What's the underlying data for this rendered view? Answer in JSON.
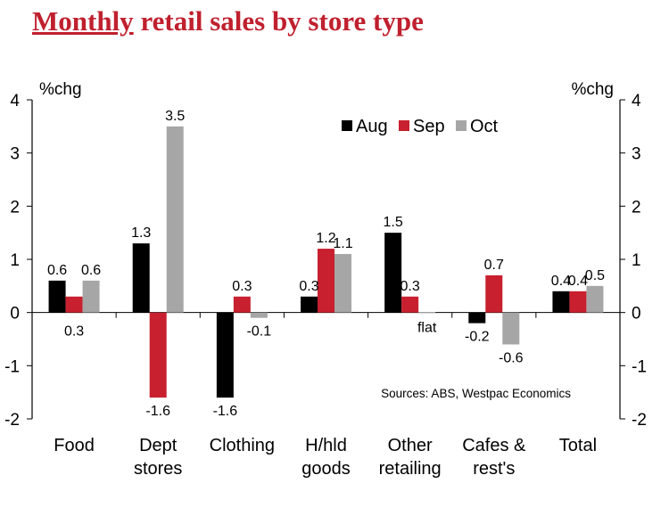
{
  "title": {
    "underlined": "Monthly",
    "rest": " retail sales by store type"
  },
  "colors": {
    "aug": "#000000",
    "sep": "#c8202f",
    "oct": "#a6a6a6",
    "title": "#c0202e"
  },
  "chart_data": {
    "type": "bar",
    "title": "Monthly retail sales by store type",
    "unit_label_left": "%chg",
    "unit_label_right": "%chg",
    "ylim": [
      -2,
      4
    ],
    "yticks": [
      "-2",
      "-1",
      "0",
      "1",
      "2",
      "3",
      "4"
    ],
    "categories": [
      [
        "Food"
      ],
      [
        "Dept",
        "stores"
      ],
      [
        "Clothing"
      ],
      [
        "H/hld",
        "goods"
      ],
      [
        "Other",
        "retailing"
      ],
      [
        "Cafes &",
        "rest's"
      ],
      [
        "Total"
      ]
    ],
    "series": [
      {
        "name": "Aug",
        "color": "#000000",
        "values": [
          0.6,
          1.3,
          -1.6,
          0.3,
          1.5,
          -0.2,
          0.4
        ]
      },
      {
        "name": "Sep",
        "color": "#c8202f",
        "values": [
          0.3,
          -1.6,
          0.3,
          1.2,
          0.3,
          0.7,
          0.4
        ]
      },
      {
        "name": "Oct",
        "color": "#a6a6a6",
        "values": [
          0.6,
          3.5,
          -0.1,
          1.1,
          0.0,
          -0.6,
          0.5
        ]
      }
    ],
    "data_labels": [
      [
        "0.6",
        "0.3",
        "0.6"
      ],
      [
        "1.3",
        "-1.6",
        "3.5"
      ],
      [
        "-1.6",
        "0.3",
        "-0.1"
      ],
      [
        "0.3",
        "1.2",
        "1.1"
      ],
      [
        "1.5",
        "0.3",
        "flat"
      ],
      [
        "-0.2",
        "0.7",
        "-0.6"
      ],
      [
        "0.4",
        "0.4",
        "0.5"
      ]
    ],
    "legend_position": "top-right",
    "grid": false,
    "source": "Sources: ABS, Westpac Economics"
  }
}
